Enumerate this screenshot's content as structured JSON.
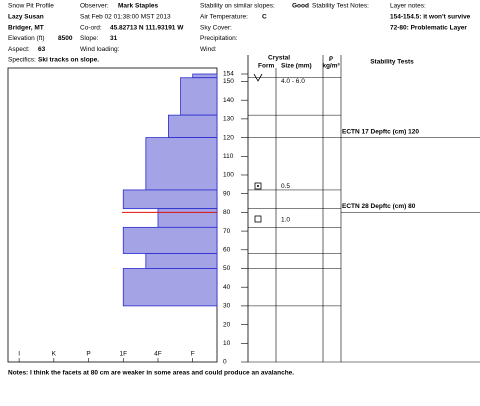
{
  "header": {
    "columns": [
      [
        {
          "label": "Snow Pit Profile"
        },
        {
          "label": "Lazy Susan"
        },
        {
          "label": "Bridger, MT"
        },
        {
          "label": "Elevation (ft)",
          "value": "8500"
        },
        {
          "label": "Aspect:",
          "value": "63"
        },
        {
          "label": "Specifics:",
          "value": "Ski tracks on slope."
        }
      ],
      [
        {
          "label": "Observer:",
          "value": "Mark Staples"
        },
        {
          "label": "Sat Feb 02 01:38:00 MST 2013"
        },
        {
          "label": "Co-ord:",
          "value": "45.82713 N 111.93191 W"
        },
        {
          "label": "Slope:",
          "value": "31"
        },
        {
          "label": "Wind loading:"
        }
      ],
      [
        {
          "label": "Stability on similar slopes:",
          "value": "Good"
        },
        {
          "label": "Air Temperature:",
          "value": "C"
        },
        {
          "label": "Sky Cover:"
        },
        {
          "label": "Precipitation:"
        },
        {
          "label": "Wind:"
        }
      ],
      [
        {
          "label": "Stability Test Notes:"
        }
      ],
      [
        {
          "label": "Layer notes:"
        },
        {
          "label": "154-154.5: it won't survive"
        },
        {
          "label": "72-80: Problematic Layer"
        }
      ]
    ]
  },
  "chart_data": {
    "type": "layers",
    "layers": [
      {
        "top": 154,
        "bottom": 152,
        "hardness": 6
      },
      {
        "top": 152,
        "bottom": 132,
        "hardness": 5.65
      },
      {
        "top": 132,
        "bottom": 120,
        "hardness": 5.3
      },
      {
        "top": 120,
        "bottom": 92,
        "hardness": 4.65
      },
      {
        "top": 92,
        "bottom": 82,
        "hardness": 4
      },
      {
        "top": 82,
        "bottom": 72,
        "hardness": 5
      },
      {
        "top": 72,
        "bottom": 58,
        "hardness": 4
      },
      {
        "top": 58,
        "bottom": 50,
        "hardness": 4.65
      },
      {
        "top": 50,
        "bottom": 30,
        "hardness": 4
      }
    ],
    "color": "#a3a3e6",
    "edge_color": "#2b2bd0",
    "highlight_depth": 80,
    "highlight_color": "#e01010",
    "xlim": [
      0.68,
      6.7
    ],
    "xticks": [
      {
        "value": 1,
        "label": "I"
      },
      {
        "value": 2,
        "label": "K"
      },
      {
        "value": 3,
        "label": "P"
      },
      {
        "value": 4,
        "label": "1F"
      },
      {
        "value": 5,
        "label": "4F"
      },
      {
        "value": 6,
        "label": "F"
      }
    ],
    "ylim": [
      0,
      154
    ],
    "yticks": [
      0,
      10,
      20,
      30,
      40,
      50,
      60,
      70,
      80,
      90,
      100,
      110,
      120,
      130,
      140,
      150,
      154
    ]
  },
  "columns": {
    "crystal": "Crystal",
    "form": "Form",
    "size": "Size (mm)",
    "density": "ρ",
    "density_unit": "kg/m³",
    "stability": "Stability Tests"
  },
  "crystals": [
    {
      "depth": 150,
      "size": "4.0 - 6.0"
    },
    {
      "depth": 94,
      "size": "0.5"
    },
    {
      "depth": 76,
      "size": "1.0"
    }
  ],
  "stability_tests": [
    {
      "depth": 120,
      "text": "ECTN 17  Depftc (cm) 120"
    },
    {
      "depth": 80,
      "text": "ECTN 28  Depftc (cm) 80"
    }
  ],
  "notes": "Notes: I think the facets at 80 cm are weaker in some areas and could produce an avalanche."
}
